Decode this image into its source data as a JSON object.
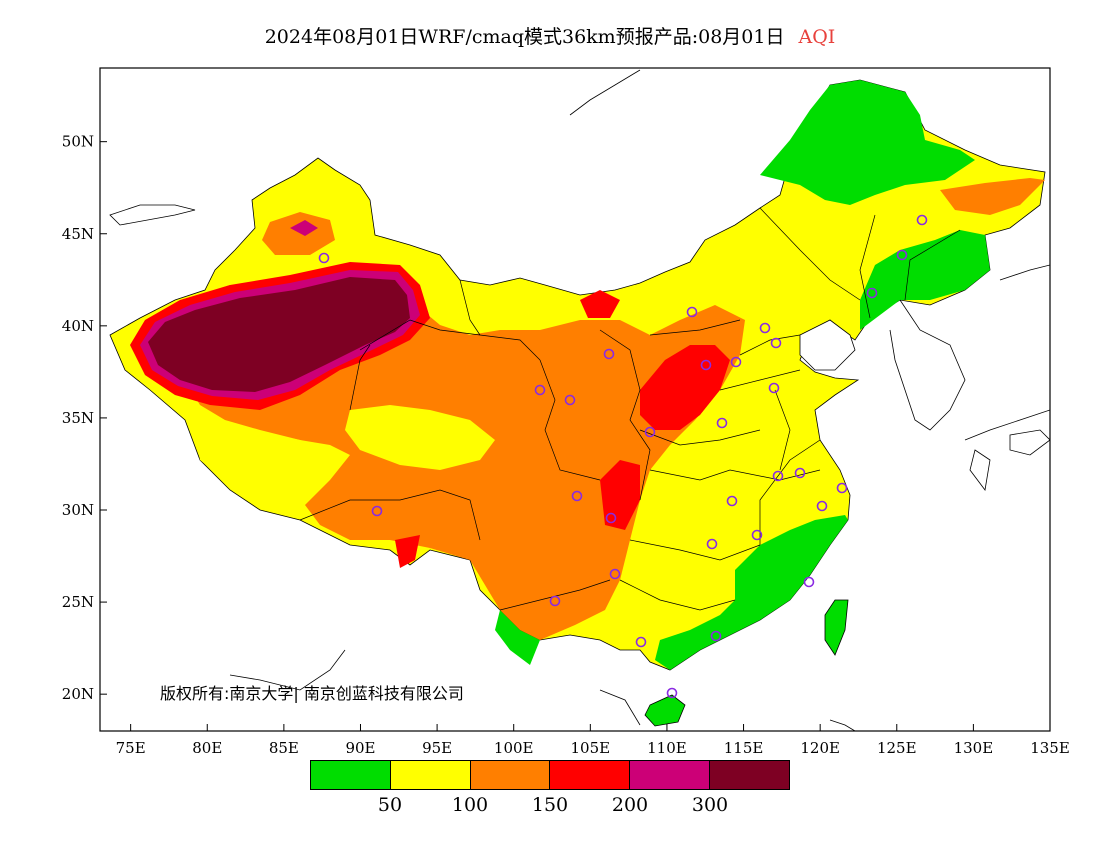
{
  "title": {
    "main": "2024年08月01日WRF/cmaq模式36km预报产品:08月01日",
    "variable": "AQI"
  },
  "axes": {
    "lon_labels": [
      "75E",
      "80E",
      "85E",
      "90E",
      "95E",
      "100E",
      "105E",
      "110E",
      "115E",
      "120E",
      "125E",
      "130E",
      "135E"
    ],
    "lat_labels": [
      "50N",
      "45N",
      "40N",
      "35N",
      "30N",
      "25N",
      "20N"
    ]
  },
  "copyright": "版权所有:南京大学| 南京创蓝科技有限公司",
  "legend": {
    "colors": [
      "#00dd00",
      "#ffff00",
      "#ff7f00",
      "#ff0000",
      "#cc0077",
      "#7e0023"
    ],
    "labels": [
      "50",
      "100",
      "150",
      "200",
      "300"
    ]
  },
  "chart_data": {
    "type": "heatmap",
    "title": "2024年08月01日WRF/cmaq模式36km预报产品:08月01日 AQI",
    "xlim": [
      73,
      135
    ],
    "ylim": [
      18,
      54
    ],
    "levels": [
      50,
      100,
      150,
      200,
      300
    ]
  }
}
